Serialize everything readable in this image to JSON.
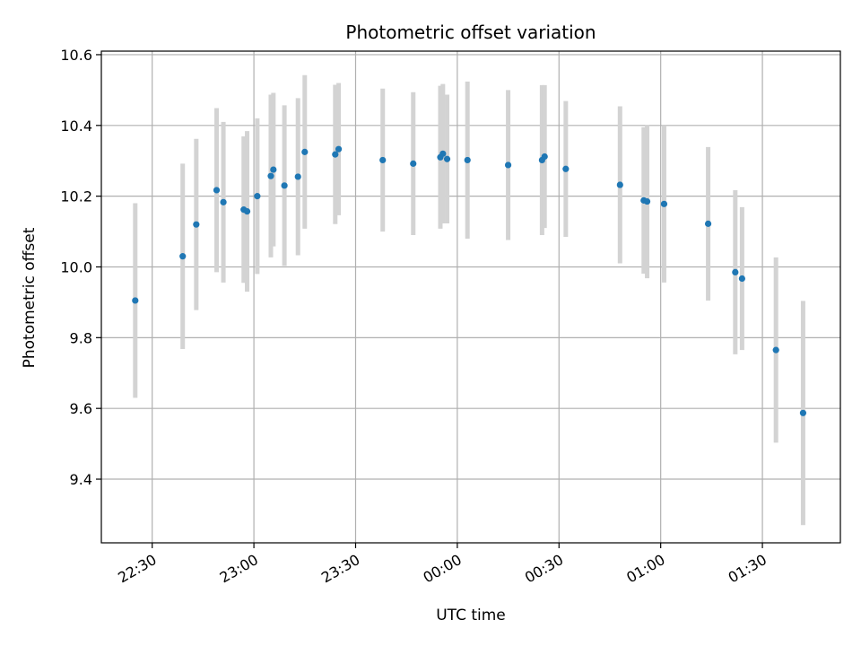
{
  "chart_data": {
    "type": "scatter",
    "title": "Photometric offset variation",
    "xlabel": "UTC time",
    "ylabel": "Photometric offset",
    "x_ticks": [
      "22:30",
      "23:00",
      "23:30",
      "00:00",
      "00:30",
      "01:00",
      "01:30"
    ],
    "y_ticks": [
      "9.4",
      "9.6",
      "9.8",
      "10.0",
      "10.2",
      "10.4",
      "10.6"
    ],
    "x_range": [
      "22:15",
      "01:53"
    ],
    "ylim": [
      9.22,
      10.61
    ],
    "grid": true,
    "colors": {
      "marker": "#1f77b4",
      "errorbar": "#d3d3d3"
    },
    "series": [
      {
        "points": [
          {
            "t": "22:25",
            "y": 9.905,
            "err": 0.275
          },
          {
            "t": "22:39",
            "y": 10.03,
            "err": 0.262
          },
          {
            "t": "22:43",
            "y": 10.12,
            "err": 0.242
          },
          {
            "t": "22:49",
            "y": 10.217,
            "err": 0.232
          },
          {
            "t": "22:51",
            "y": 10.183,
            "err": 0.227
          },
          {
            "t": "22:57",
            "y": 10.162,
            "err": 0.207
          },
          {
            "t": "22:58",
            "y": 10.157,
            "err": 0.227
          },
          {
            "t": "23:01",
            "y": 10.2,
            "err": 0.22
          },
          {
            "t": "23:05",
            "y": 10.257,
            "err": 0.23
          },
          {
            "t": "23:05:45",
            "y": 10.275,
            "err": 0.217
          },
          {
            "t": "23:09",
            "y": 10.23,
            "err": 0.227
          },
          {
            "t": "23:13",
            "y": 10.255,
            "err": 0.222
          },
          {
            "t": "23:15",
            "y": 10.325,
            "err": 0.217
          },
          {
            "t": "23:24",
            "y": 10.318,
            "err": 0.197
          },
          {
            "t": "23:25",
            "y": 10.333,
            "err": 0.187
          },
          {
            "t": "23:38",
            "y": 10.302,
            "err": 0.202
          },
          {
            "t": "23:47",
            "y": 10.292,
            "err": 0.202
          },
          {
            "t": "23:55",
            "y": 10.31,
            "err": 0.202
          },
          {
            "t": "23:55:45",
            "y": 10.32,
            "err": 0.197
          },
          {
            "t": "23:57",
            "y": 10.305,
            "err": 0.182
          },
          {
            "t": "00:03",
            "y": 10.302,
            "err": 0.222
          },
          {
            "t": "00:15",
            "y": 10.288,
            "err": 0.212
          },
          {
            "t": "00:25",
            "y": 10.302,
            "err": 0.212
          },
          {
            "t": "00:25:45",
            "y": 10.312,
            "err": 0.202
          },
          {
            "t": "00:32",
            "y": 10.277,
            "err": 0.192
          },
          {
            "t": "00:48",
            "y": 10.232,
            "err": 0.222
          },
          {
            "t": "00:55",
            "y": 10.188,
            "err": 0.207
          },
          {
            "t": "00:56",
            "y": 10.185,
            "err": 0.217
          },
          {
            "t": "01:01",
            "y": 10.178,
            "err": 0.222
          },
          {
            "t": "01:14",
            "y": 10.122,
            "err": 0.217
          },
          {
            "t": "01:22",
            "y": 9.985,
            "err": 0.232
          },
          {
            "t": "01:24",
            "y": 9.967,
            "err": 0.202
          },
          {
            "t": "01:34",
            "y": 9.765,
            "err": 0.262
          },
          {
            "t": "01:42",
            "y": 9.587,
            "err": 0.317
          }
        ]
      }
    ]
  }
}
